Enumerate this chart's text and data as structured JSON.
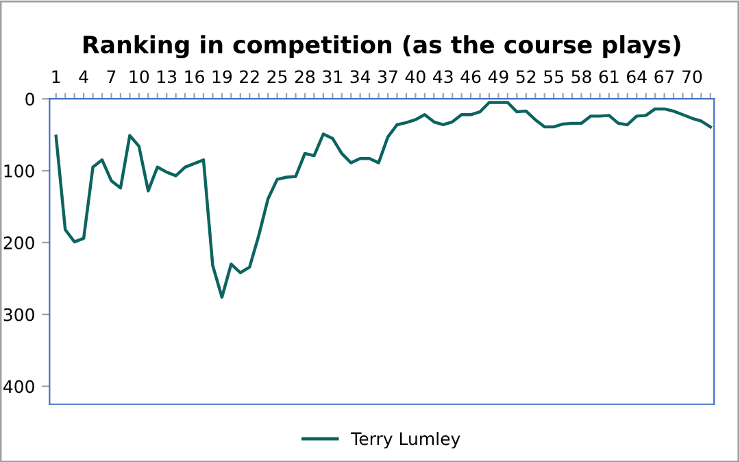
{
  "chart_data": {
    "type": "line",
    "title": "Ranking in competition (as the course plays)",
    "categories": [
      "1",
      null,
      null,
      "4",
      null,
      null,
      "7",
      null,
      null,
      "10",
      null,
      null,
      "13",
      null,
      null,
      "16",
      null,
      null,
      "19",
      null,
      null,
      "22",
      null,
      null,
      "25",
      null,
      null,
      "28",
      null,
      null,
      "31",
      null,
      null,
      "34",
      null,
      null,
      "37",
      null,
      null,
      "40",
      null,
      null,
      "43",
      null,
      null,
      "46",
      null,
      null,
      "49",
      null,
      null,
      "52",
      null,
      null,
      "55",
      null,
      null,
      "58",
      null,
      null,
      "61",
      null,
      null,
      "64",
      null,
      null,
      "67",
      null,
      null,
      "70",
      null,
      null
    ],
    "series": [
      {
        "name": "Terry Lumley",
        "color": "#0b6460",
        "values": [
          52,
          182,
          199,
          194,
          95,
          85,
          114,
          124,
          51,
          66,
          128,
          95,
          102,
          107,
          95,
          90,
          85,
          232,
          276,
          230,
          242,
          234,
          190,
          139,
          112,
          109,
          108,
          76,
          79,
          49,
          55,
          76,
          89,
          83,
          83,
          89,
          53,
          36,
          33,
          29,
          22,
          32,
          36,
          32,
          22,
          22,
          18,
          5,
          5,
          5,
          18,
          17,
          29,
          39,
          39,
          35,
          34,
          34,
          24,
          24,
          23,
          34,
          36,
          24,
          23,
          14,
          14,
          17,
          22,
          27,
          31,
          39
        ]
      }
    ],
    "ylim": [
      425,
      0
    ],
    "yticks": [
      0,
      100,
      200,
      300,
      400
    ],
    "grid": false,
    "legend": "bottom",
    "marker": "none",
    "line_style": "solid"
  }
}
